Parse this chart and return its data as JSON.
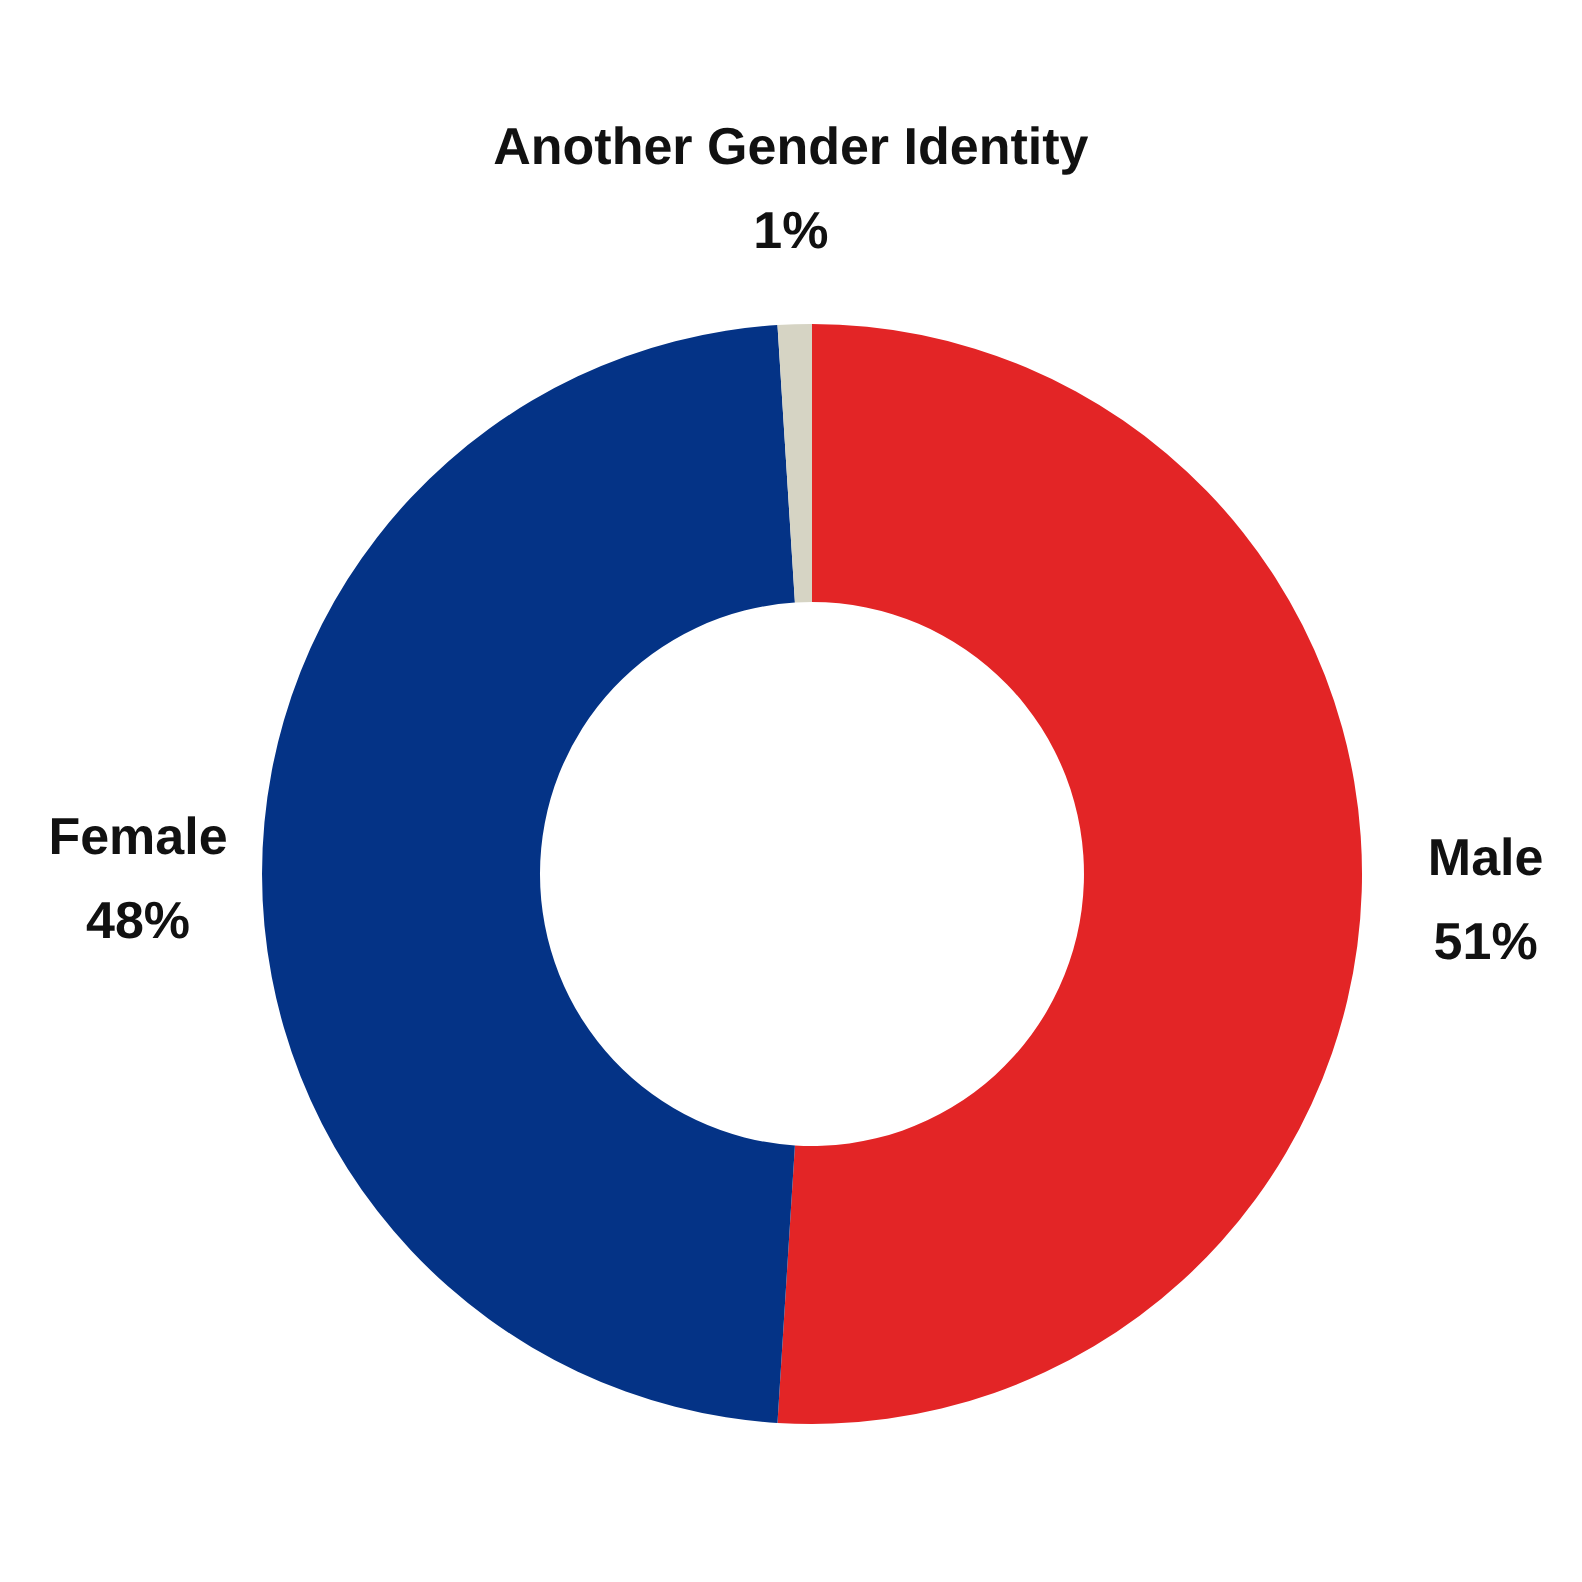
{
  "chart_data": {
    "type": "donut",
    "categories": [
      "Male",
      "Female",
      "Another Gender Identity"
    ],
    "values": [
      51,
      48,
      1
    ],
    "colors": [
      "#e32526",
      "#043386",
      "#d6d4c4"
    ],
    "value_labels": [
      "51%",
      "48%",
      "1%"
    ],
    "legend": false
  }
}
